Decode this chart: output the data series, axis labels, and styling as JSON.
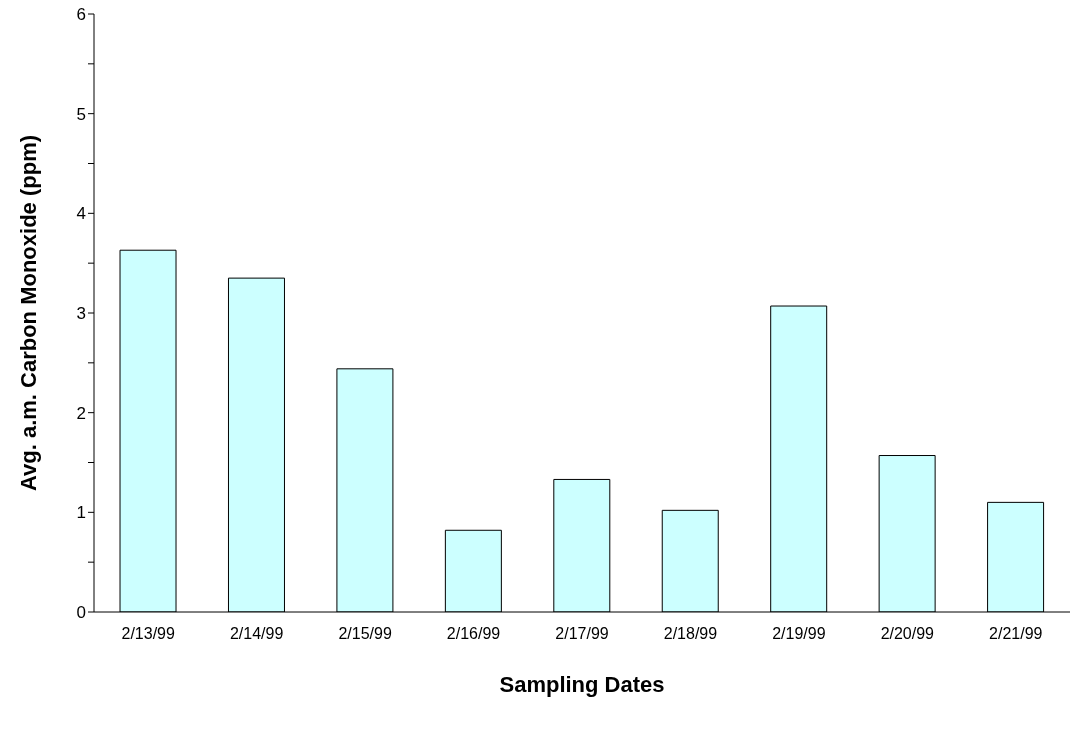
{
  "chart_data": {
    "type": "bar",
    "xlabel": "Sampling Dates",
    "ylabel": "Avg. a.m. Carbon Monoxide (ppm)",
    "categories": [
      "2/13/99",
      "2/14/99",
      "2/15/99",
      "2/16/99",
      "2/17/99",
      "2/18/99",
      "2/19/99",
      "2/20/99",
      "2/21/99"
    ],
    "values": [
      3.63,
      3.35,
      2.44,
      0.82,
      1.33,
      1.02,
      3.07,
      1.57,
      1.1
    ],
    "color": "#ccffff",
    "ylim": [
      0,
      6
    ],
    "yticks": [
      0,
      {
        "value": 0.5,
        "label": null
      },
      1,
      {
        "value": 1.5,
        "label": null
      },
      2,
      {
        "value": 2.5,
        "label": null
      },
      3,
      {
        "value": 3.5,
        "label": null
      },
      4,
      {
        "value": 4.5,
        "label": null
      },
      5,
      {
        "value": 5.5,
        "label": null
      },
      6
    ]
  }
}
